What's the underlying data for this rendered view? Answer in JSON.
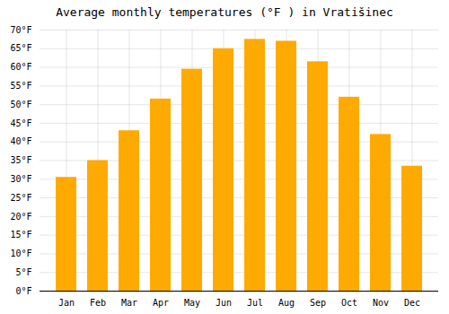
{
  "chart_data": {
    "type": "bar",
    "title": "Average monthly temperatures (°F ) in Vratišinec",
    "categories": [
      "Jan",
      "Feb",
      "Mar",
      "Apr",
      "May",
      "Jun",
      "Jul",
      "Aug",
      "Sep",
      "Oct",
      "Nov",
      "Dec"
    ],
    "values": [
      30.5,
      35.0,
      43.0,
      51.5,
      59.5,
      65.0,
      67.5,
      67.0,
      61.5,
      52.0,
      42.0,
      33.5
    ],
    "color": "#FFAA00",
    "ylim": [
      0,
      70
    ],
    "yticks": [
      {
        "value": 0,
        "label": "0°F"
      },
      {
        "value": 5,
        "label": "5°F"
      },
      {
        "value": 10,
        "label": "10°F"
      },
      {
        "value": 15,
        "label": "15°F"
      },
      {
        "value": 20,
        "label": "20°F"
      },
      {
        "value": 25,
        "label": "25°F"
      },
      {
        "value": 30,
        "label": "30°F"
      },
      {
        "value": 35,
        "label": "35°F"
      },
      {
        "value": 40,
        "label": "40°F"
      },
      {
        "value": 45,
        "label": "45°F"
      },
      {
        "value": 50,
        "label": "50°F"
      },
      {
        "value": 55,
        "label": "55°F"
      },
      {
        "value": 60,
        "label": "60°F"
      },
      {
        "value": 65,
        "label": "65°F"
      },
      {
        "value": 70,
        "label": "70°F"
      }
    ],
    "grid": true
  }
}
